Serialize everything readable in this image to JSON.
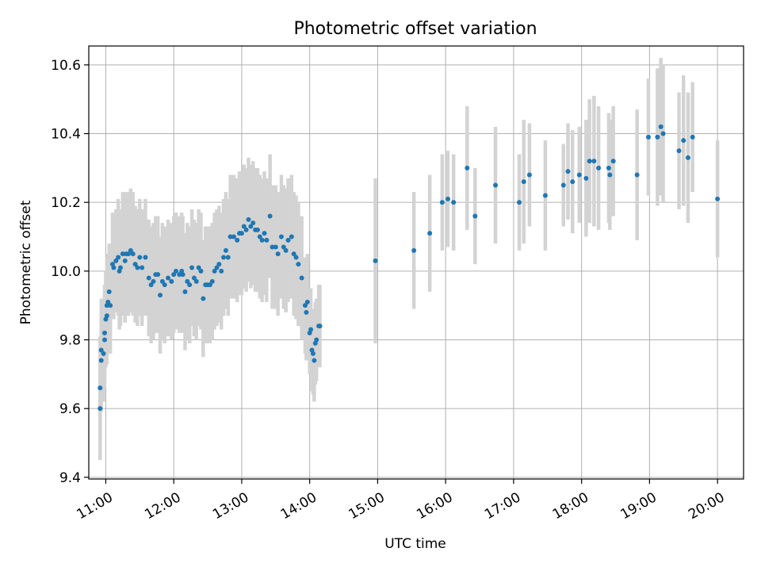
{
  "chart_data": {
    "type": "scatter",
    "title": "Photometric offset variation",
    "xlabel": "UTC time",
    "ylabel": "Photometric offset",
    "xlim": [
      "10:45",
      "20:23"
    ],
    "ylim": [
      9.395,
      10.655
    ],
    "grid": true,
    "legend": "none",
    "x_ticks": [
      "11:00",
      "12:00",
      "13:00",
      "14:00",
      "15:00",
      "16:00",
      "17:00",
      "18:00",
      "19:00",
      "20:00"
    ],
    "y_ticks": [
      9.4,
      9.6,
      9.8,
      10.0,
      10.2,
      10.4,
      10.6
    ],
    "marker_color": "#1f77b4",
    "errorbar_color": "#d3d3d3",
    "series": [
      {
        "points": [
          {
            "x": "10:55",
            "y": 9.6,
            "err": 0.15
          },
          {
            "x": "10:55",
            "y": 9.66,
            "err": 0.15
          },
          {
            "x": "10:56",
            "y": 9.74,
            "err": 0.15
          },
          {
            "x": "10:56",
            "y": 9.77,
            "err": 0.15
          },
          {
            "x": "10:58",
            "y": 9.76,
            "err": 0.14
          },
          {
            "x": "10:59",
            "y": 9.8,
            "err": 0.14
          },
          {
            "x": "10:59",
            "y": 9.82,
            "err": 0.14
          },
          {
            "x": "11:00",
            "y": 9.86,
            "err": 0.14
          },
          {
            "x": "11:01",
            "y": 9.87,
            "err": 0.14
          },
          {
            "x": "11:01",
            "y": 9.9,
            "err": 0.14
          },
          {
            "x": "11:02",
            "y": 9.91,
            "err": 0.14
          },
          {
            "x": "11:03",
            "y": 9.94,
            "err": 0.14
          },
          {
            "x": "11:04",
            "y": 9.9,
            "err": 0.14
          },
          {
            "x": "11:06",
            "y": 10.02,
            "err": 0.15
          },
          {
            "x": "11:07",
            "y": 10.01,
            "err": 0.15
          },
          {
            "x": "11:09",
            "y": 10.03,
            "err": 0.15
          },
          {
            "x": "11:11",
            "y": 10.04,
            "err": 0.17
          },
          {
            "x": "11:12",
            "y": 10.0,
            "err": 0.17
          },
          {
            "x": "11:13",
            "y": 10.01,
            "err": 0.17
          },
          {
            "x": "11:15",
            "y": 10.05,
            "err": 0.18
          },
          {
            "x": "11:17",
            "y": 10.03,
            "err": 0.18
          },
          {
            "x": "11:18",
            "y": 10.05,
            "err": 0.18
          },
          {
            "x": "11:20",
            "y": 10.05,
            "err": 0.18
          },
          {
            "x": "11:22",
            "y": 10.06,
            "err": 0.18
          },
          {
            "x": "11:24",
            "y": 10.05,
            "err": 0.18
          },
          {
            "x": "11:26",
            "y": 10.02,
            "err": 0.17
          },
          {
            "x": "11:28",
            "y": 10.01,
            "err": 0.17
          },
          {
            "x": "11:30",
            "y": 10.04,
            "err": 0.17
          },
          {
            "x": "11:32",
            "y": 10.01,
            "err": 0.17
          },
          {
            "x": "11:35",
            "y": 10.04,
            "err": 0.17
          },
          {
            "x": "11:38",
            "y": 9.98,
            "err": 0.17
          },
          {
            "x": "11:40",
            "y": 9.96,
            "err": 0.17
          },
          {
            "x": "11:42",
            "y": 9.97,
            "err": 0.17
          },
          {
            "x": "11:44",
            "y": 9.99,
            "err": 0.17
          },
          {
            "x": "11:46",
            "y": 9.99,
            "err": 0.17
          },
          {
            "x": "11:48",
            "y": 9.93,
            "err": 0.17
          },
          {
            "x": "11:50",
            "y": 9.97,
            "err": 0.17
          },
          {
            "x": "11:52",
            "y": 9.96,
            "err": 0.17
          },
          {
            "x": "11:55",
            "y": 9.98,
            "err": 0.17
          },
          {
            "x": "11:58",
            "y": 9.97,
            "err": 0.17
          },
          {
            "x": "12:00",
            "y": 9.99,
            "err": 0.17
          },
          {
            "x": "12:02",
            "y": 10.0,
            "err": 0.17
          },
          {
            "x": "12:05",
            "y": 9.99,
            "err": 0.17
          },
          {
            "x": "12:07",
            "y": 10.0,
            "err": 0.17
          },
          {
            "x": "12:08",
            "y": 9.99,
            "err": 0.17
          },
          {
            "x": "12:10",
            "y": 9.94,
            "err": 0.17
          },
          {
            "x": "12:12",
            "y": 9.97,
            "err": 0.17
          },
          {
            "x": "12:14",
            "y": 9.96,
            "err": 0.17
          },
          {
            "x": "12:16",
            "y": 10.01,
            "err": 0.17
          },
          {
            "x": "12:18",
            "y": 9.98,
            "err": 0.17
          },
          {
            "x": "12:20",
            "y": 9.97,
            "err": 0.17
          },
          {
            "x": "12:22",
            "y": 10.01,
            "err": 0.17
          },
          {
            "x": "12:24",
            "y": 10.0,
            "err": 0.17
          },
          {
            "x": "12:26",
            "y": 9.92,
            "err": 0.17
          },
          {
            "x": "12:28",
            "y": 9.96,
            "err": 0.17
          },
          {
            "x": "12:30",
            "y": 9.96,
            "err": 0.17
          },
          {
            "x": "12:32",
            "y": 9.96,
            "err": 0.17
          },
          {
            "x": "12:34",
            "y": 9.97,
            "err": 0.17
          },
          {
            "x": "12:36",
            "y": 10.0,
            "err": 0.17
          },
          {
            "x": "12:38",
            "y": 10.01,
            "err": 0.17
          },
          {
            "x": "12:40",
            "y": 10.02,
            "err": 0.17
          },
          {
            "x": "12:42",
            "y": 10.0,
            "err": 0.17
          },
          {
            "x": "12:44",
            "y": 10.04,
            "err": 0.17
          },
          {
            "x": "12:46",
            "y": 10.06,
            "err": 0.17
          },
          {
            "x": "12:48",
            "y": 10.04,
            "err": 0.17
          },
          {
            "x": "12:50",
            "y": 10.1,
            "err": 0.18
          },
          {
            "x": "12:53",
            "y": 10.1,
            "err": 0.18
          },
          {
            "x": "12:56",
            "y": 10.09,
            "err": 0.18
          },
          {
            "x": "12:58",
            "y": 10.11,
            "err": 0.18
          },
          {
            "x": "13:00",
            "y": 10.11,
            "err": 0.18
          },
          {
            "x": "13:02",
            "y": 10.13,
            "err": 0.18
          },
          {
            "x": "13:04",
            "y": 10.12,
            "err": 0.18
          },
          {
            "x": "13:06",
            "y": 10.15,
            "err": 0.18
          },
          {
            "x": "13:08",
            "y": 10.13,
            "err": 0.18
          },
          {
            "x": "13:10",
            "y": 10.14,
            "err": 0.18
          },
          {
            "x": "13:12",
            "y": 10.12,
            "err": 0.18
          },
          {
            "x": "13:14",
            "y": 10.12,
            "err": 0.18
          },
          {
            "x": "13:16",
            "y": 10.1,
            "err": 0.18
          },
          {
            "x": "13:18",
            "y": 10.09,
            "err": 0.18
          },
          {
            "x": "13:20",
            "y": 10.11,
            "err": 0.18
          },
          {
            "x": "13:22",
            "y": 10.09,
            "err": 0.18
          },
          {
            "x": "13:25",
            "y": 10.16,
            "err": 0.18
          },
          {
            "x": "13:27",
            "y": 10.07,
            "err": 0.18
          },
          {
            "x": "13:30",
            "y": 10.07,
            "err": 0.18
          },
          {
            "x": "13:32",
            "y": 10.05,
            "err": 0.18
          },
          {
            "x": "13:35",
            "y": 10.1,
            "err": 0.18
          },
          {
            "x": "13:37",
            "y": 10.07,
            "err": 0.18
          },
          {
            "x": "13:39",
            "y": 10.06,
            "err": 0.18
          },
          {
            "x": "13:41",
            "y": 10.09,
            "err": 0.18
          },
          {
            "x": "13:44",
            "y": 10.1,
            "err": 0.18
          },
          {
            "x": "13:46",
            "y": 10.05,
            "err": 0.18
          },
          {
            "x": "13:48",
            "y": 10.04,
            "err": 0.18
          },
          {
            "x": "13:50",
            "y": 10.02,
            "err": 0.18
          },
          {
            "x": "13:53",
            "y": 9.98,
            "err": 0.18
          },
          {
            "x": "13:56",
            "y": 9.9,
            "err": 0.14
          },
          {
            "x": "13:57",
            "y": 9.88,
            "err": 0.14
          },
          {
            "x": "13:58",
            "y": 9.91,
            "err": 0.14
          },
          {
            "x": "14:00",
            "y": 9.82,
            "err": 0.12
          },
          {
            "x": "14:01",
            "y": 9.83,
            "err": 0.12
          },
          {
            "x": "14:02",
            "y": 9.77,
            "err": 0.12
          },
          {
            "x": "14:03",
            "y": 9.76,
            "err": 0.12
          },
          {
            "x": "14:04",
            "y": 9.74,
            "err": 0.12
          },
          {
            "x": "14:05",
            "y": 9.79,
            "err": 0.12
          },
          {
            "x": "14:06",
            "y": 9.8,
            "err": 0.12
          },
          {
            "x": "14:08",
            "y": 9.84,
            "err": 0.12
          },
          {
            "x": "14:09",
            "y": 9.84,
            "err": 0.12
          },
          {
            "x": "14:58",
            "y": 10.03,
            "err": 0.24
          },
          {
            "x": "15:32",
            "y": 10.06,
            "err": 0.17
          },
          {
            "x": "15:46",
            "y": 10.11,
            "err": 0.17
          },
          {
            "x": "15:57",
            "y": 10.2,
            "err": 0.14
          },
          {
            "x": "16:02",
            "y": 10.21,
            "err": 0.14
          },
          {
            "x": "16:07",
            "y": 10.2,
            "err": 0.14
          },
          {
            "x": "16:19",
            "y": 10.3,
            "err": 0.18
          },
          {
            "x": "16:26",
            "y": 10.16,
            "err": 0.14
          },
          {
            "x": "16:44",
            "y": 10.25,
            "err": 0.17
          },
          {
            "x": "17:05",
            "y": 10.2,
            "err": 0.14
          },
          {
            "x": "17:09",
            "y": 10.26,
            "err": 0.18
          },
          {
            "x": "17:14",
            "y": 10.28,
            "err": 0.15
          },
          {
            "x": "17:28",
            "y": 10.22,
            "err": 0.16
          },
          {
            "x": "17:44",
            "y": 10.25,
            "err": 0.12
          },
          {
            "x": "17:48",
            "y": 10.29,
            "err": 0.14
          },
          {
            "x": "17:52",
            "y": 10.26,
            "err": 0.15
          },
          {
            "x": "17:58",
            "y": 10.28,
            "err": 0.14
          },
          {
            "x": "18:04",
            "y": 10.27,
            "err": 0.17
          },
          {
            "x": "18:07",
            "y": 10.32,
            "err": 0.18
          },
          {
            "x": "18:11",
            "y": 10.32,
            "err": 0.19
          },
          {
            "x": "18:15",
            "y": 10.3,
            "err": 0.18
          },
          {
            "x": "18:24",
            "y": 10.3,
            "err": 0.16
          },
          {
            "x": "18:25",
            "y": 10.28,
            "err": 0.16
          },
          {
            "x": "18:28",
            "y": 10.32,
            "err": 0.16
          },
          {
            "x": "18:49",
            "y": 10.28,
            "err": 0.19
          },
          {
            "x": "18:59",
            "y": 10.39,
            "err": 0.17
          },
          {
            "x": "19:07",
            "y": 10.39,
            "err": 0.2
          },
          {
            "x": "19:10",
            "y": 10.42,
            "err": 0.2
          },
          {
            "x": "19:12",
            "y": 10.4,
            "err": 0.2
          },
          {
            "x": "19:26",
            "y": 10.35,
            "err": 0.17
          },
          {
            "x": "19:30",
            "y": 10.38,
            "err": 0.19
          },
          {
            "x": "19:34",
            "y": 10.33,
            "err": 0.19
          },
          {
            "x": "19:38",
            "y": 10.39,
            "err": 0.16
          },
          {
            "x": "20:00",
            "y": 10.21,
            "err": 0.17
          }
        ]
      }
    ]
  }
}
